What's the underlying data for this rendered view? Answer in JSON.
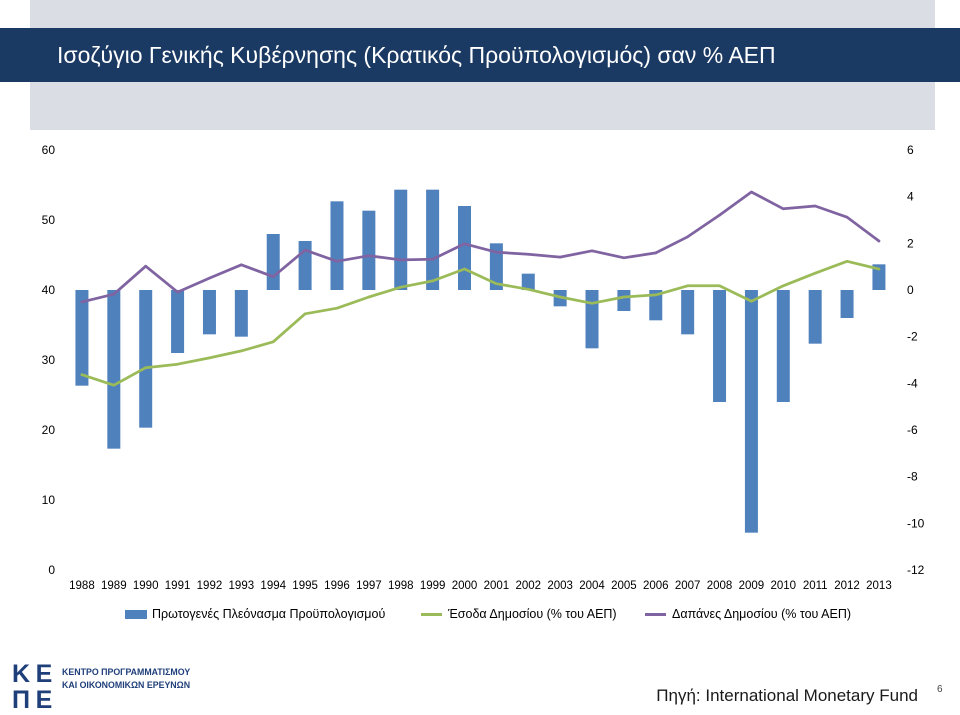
{
  "slide": {
    "title": "Ισοζύγιο Γενικής Κυβέρνησης (Κρατικός Προϋπολογισμός) σαν % ΑΕΠ",
    "source": "Πηγή: International Monetary Fund",
    "page_number": "6",
    "colors": {
      "title_band": "#1b3a63",
      "title_text": "#ffffff",
      "header_background": "#dadde4"
    }
  },
  "logo": {
    "mark_letters": [
      "Κ",
      "Ε",
      "Π",
      "Ε"
    ],
    "name_line_1": "ΚΕΝΤΡΟ ΠΡΟΓΡΑΜΜΑΤΙΣΜΟΥ",
    "name_line_2": "ΚΑΙ ΟΙΚΟΝΟΜΙΚΩΝ ΕΡΕΥΝΩΝ",
    "color": "#1f3f7a"
  },
  "chart_data": {
    "type": "bar",
    "categories": [
      "1988",
      "1989",
      "1990",
      "1991",
      "1992",
      "1993",
      "1994",
      "1995",
      "1996",
      "1997",
      "1998",
      "1999",
      "2000",
      "2001",
      "2002",
      "2003",
      "2004",
      "2005",
      "2006",
      "2007",
      "2008",
      "2009",
      "2010",
      "2011",
      "2012",
      "2013"
    ],
    "y_left": {
      "range": [
        0,
        60
      ],
      "ticks": [
        0,
        10,
        20,
        30,
        40,
        50,
        60
      ]
    },
    "y_right": {
      "range": [
        -12,
        6
      ],
      "ticks": [
        -12,
        -10,
        -8,
        -6,
        -4,
        -2,
        0,
        2,
        4,
        6
      ]
    },
    "grid": false,
    "legend_position": "bottom",
    "series": [
      {
        "name": "Πρωτογενές Πλεόνασμα Προϋπολογισμού",
        "type": "bar",
        "axis": "right",
        "color": "#4F81BD",
        "values": [
          -4.1,
          -6.8,
          -5.9,
          -2.7,
          -1.9,
          -2.0,
          2.4,
          2.1,
          3.8,
          3.4,
          4.3,
          4.3,
          3.6,
          2.0,
          0.7,
          -0.7,
          -2.5,
          -0.9,
          -1.3,
          -1.9,
          -4.8,
          -10.4,
          -4.8,
          -2.3,
          -1.2,
          1.1
        ]
      },
      {
        "name": "Έσοδα Δημοσίου (% του ΑΕΠ)",
        "type": "line",
        "axis": "left",
        "color": "#9BBB59",
        "values": [
          27.9,
          26.4,
          28.9,
          29.4,
          30.3,
          31.3,
          32.6,
          36.6,
          37.4,
          39.0,
          40.4,
          41.3,
          43.0,
          40.9,
          40.1,
          39.0,
          38.1,
          39.0,
          39.3,
          40.6,
          40.6,
          38.4,
          40.6,
          42.4,
          44.1,
          43.0
        ]
      },
      {
        "name": "Δαπάνες Δημοσίου (% του ΑΕΠ)",
        "type": "line",
        "axis": "left",
        "color": "#8064A2",
        "values": [
          38.3,
          39.4,
          43.4,
          39.7,
          41.7,
          43.6,
          41.9,
          45.7,
          44.1,
          44.9,
          44.3,
          44.4,
          46.6,
          45.4,
          45.1,
          44.7,
          45.6,
          44.6,
          45.3,
          47.6,
          50.7,
          54.0,
          51.6,
          52.0,
          50.4,
          47.0
        ]
      }
    ]
  }
}
